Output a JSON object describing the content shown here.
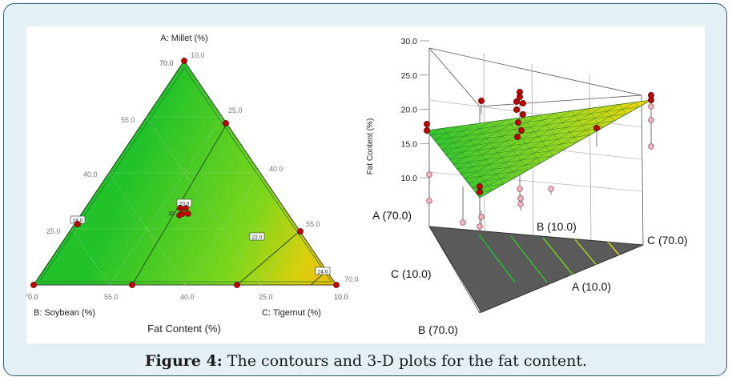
{
  "caption": {
    "label": "Figure 4:",
    "text": "The contours and 3-D plots for the fat content."
  },
  "chart_data": [
    {
      "type": "ternary-contour",
      "title": "Fat Content (%)",
      "vertices": {
        "top": "A: Millet (%)",
        "left": "B: Soybean (%)",
        "right": "C: Tigernut (%)"
      },
      "top_axis_ticks": [
        "10.0",
        "25.0",
        "40.0",
        "55.0",
        "70.0"
      ],
      "left_axis_ticks": [
        "70.0",
        "55.0",
        "40.0",
        "25.0"
      ],
      "bottom_axis_ticks": [
        "70.0",
        "55.0",
        "40.0",
        "25.0",
        "10.0"
      ],
      "left_edge_ticks": [
        "70.0",
        "55.0",
        "40.0",
        "25.0"
      ],
      "right_edge_ticks": [
        "10.0",
        "25.0",
        "40.0",
        "55.0",
        "70.0"
      ],
      "contours": [
        {
          "label": "18.0",
          "value": 18
        },
        {
          "label": "20.0",
          "value": 20
        },
        {
          "label": "22.0",
          "value": 22
        },
        {
          "label": "24.0",
          "value": 24
        }
      ],
      "center_replicates": "10",
      "color_low": "#22c22a",
      "color_high": "#f4b800"
    },
    {
      "type": "surface-3d",
      "zlabel": "Fat Content (%)",
      "z_ticks": [
        "10.0",
        "15.0",
        "20.0",
        "25.0",
        "30.0"
      ],
      "zlim": [
        10,
        30
      ],
      "base_labels": {
        "a_high": "A (70.0)",
        "b_low": "B (10.0)",
        "c_high": "C (70.0)",
        "c_low": "C (10.0)",
        "a_low": "A (10.0)",
        "b_high": "B (70.0)"
      },
      "base_color": "#5a5a5a",
      "surface_color_low": "#22c22a",
      "surface_color_high": "#f4d000"
    }
  ]
}
